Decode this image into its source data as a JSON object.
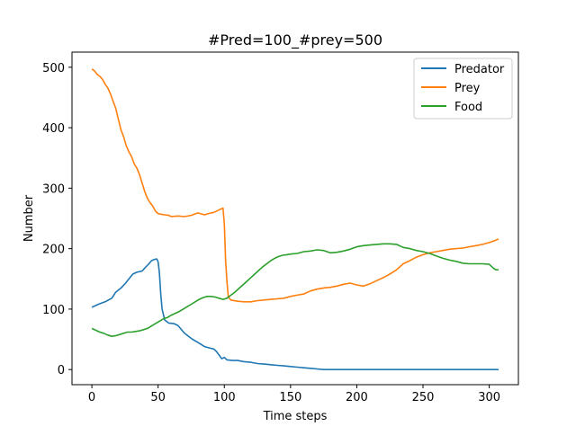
{
  "chart_data": {
    "type": "line",
    "title": "#Pred=100_#prey=500",
    "xlabel": "Time steps",
    "ylabel": "Number",
    "xlim": [
      -15,
      322
    ],
    "ylim": [
      -25,
      525
    ],
    "xticks": [
      0,
      50,
      100,
      150,
      200,
      250,
      300
    ],
    "yticks": [
      0,
      100,
      200,
      300,
      400,
      500
    ],
    "grid": false,
    "legend_position": "top-right",
    "series": [
      {
        "name": "Predator",
        "color": "#1f77b4",
        "points": [
          [
            0,
            103
          ],
          [
            5,
            108
          ],
          [
            10,
            112
          ],
          [
            15,
            118
          ],
          [
            18,
            128
          ],
          [
            22,
            135
          ],
          [
            25,
            142
          ],
          [
            28,
            150
          ],
          [
            31,
            158
          ],
          [
            34,
            161
          ],
          [
            38,
            163
          ],
          [
            40,
            168
          ],
          [
            43,
            175
          ],
          [
            45,
            180
          ],
          [
            47,
            182
          ],
          [
            49,
            183
          ],
          [
            50,
            178
          ],
          [
            51,
            160
          ],
          [
            52,
            125
          ],
          [
            53,
            100
          ],
          [
            55,
            82
          ],
          [
            58,
            77
          ],
          [
            62,
            76
          ],
          [
            65,
            73
          ],
          [
            68,
            65
          ],
          [
            70,
            60
          ],
          [
            73,
            55
          ],
          [
            76,
            50
          ],
          [
            80,
            45
          ],
          [
            85,
            38
          ],
          [
            90,
            35
          ],
          [
            92,
            34
          ],
          [
            94,
            30
          ],
          [
            96,
            24
          ],
          [
            98,
            18
          ],
          [
            100,
            20
          ],
          [
            102,
            16
          ],
          [
            106,
            15
          ],
          [
            110,
            15
          ],
          [
            115,
            13
          ],
          [
            120,
            12
          ],
          [
            125,
            10
          ],
          [
            130,
            9
          ],
          [
            135,
            8
          ],
          [
            140,
            7
          ],
          [
            145,
            6
          ],
          [
            150,
            5
          ],
          [
            155,
            4
          ],
          [
            160,
            3
          ],
          [
            165,
            2
          ],
          [
            170,
            1
          ],
          [
            175,
            0
          ],
          [
            200,
            0
          ],
          [
            250,
            0
          ],
          [
            300,
            0
          ],
          [
            307,
            0
          ]
        ]
      },
      {
        "name": "Prey",
        "color": "#ff7f0e",
        "points": [
          [
            0,
            497
          ],
          [
            2,
            494
          ],
          [
            4,
            488
          ],
          [
            6,
            485
          ],
          [
            8,
            480
          ],
          [
            10,
            472
          ],
          [
            12,
            466
          ],
          [
            14,
            456
          ],
          [
            16,
            444
          ],
          [
            18,
            432
          ],
          [
            20,
            414
          ],
          [
            22,
            396
          ],
          [
            24,
            385
          ],
          [
            26,
            370
          ],
          [
            28,
            360
          ],
          [
            30,
            352
          ],
          [
            32,
            340
          ],
          [
            34,
            333
          ],
          [
            36,
            322
          ],
          [
            38,
            308
          ],
          [
            40,
            294
          ],
          [
            42,
            283
          ],
          [
            44,
            276
          ],
          [
            46,
            270
          ],
          [
            48,
            262
          ],
          [
            50,
            258
          ],
          [
            52,
            257
          ],
          [
            55,
            256
          ],
          [
            58,
            255
          ],
          [
            60,
            253
          ],
          [
            65,
            254
          ],
          [
            70,
            253
          ],
          [
            75,
            255
          ],
          [
            80,
            259
          ],
          [
            85,
            256
          ],
          [
            88,
            258
          ],
          [
            92,
            260
          ],
          [
            95,
            263
          ],
          [
            98,
            266
          ],
          [
            99,
            267
          ],
          [
            100,
            240
          ],
          [
            101,
            180
          ],
          [
            102,
            145
          ],
          [
            103,
            120
          ],
          [
            105,
            115
          ],
          [
            110,
            113
          ],
          [
            115,
            112
          ],
          [
            120,
            112
          ],
          [
            125,
            114
          ],
          [
            130,
            115
          ],
          [
            135,
            116
          ],
          [
            140,
            117
          ],
          [
            145,
            118
          ],
          [
            150,
            121
          ],
          [
            155,
            123
          ],
          [
            160,
            125
          ],
          [
            165,
            130
          ],
          [
            170,
            133
          ],
          [
            175,
            135
          ],
          [
            180,
            136
          ],
          [
            185,
            138
          ],
          [
            190,
            141
          ],
          [
            195,
            143
          ],
          [
            200,
            140
          ],
          [
            205,
            138
          ],
          [
            210,
            142
          ],
          [
            215,
            147
          ],
          [
            220,
            152
          ],
          [
            225,
            158
          ],
          [
            230,
            165
          ],
          [
            235,
            175
          ],
          [
            240,
            180
          ],
          [
            245,
            186
          ],
          [
            250,
            190
          ],
          [
            255,
            193
          ],
          [
            260,
            195
          ],
          [
            265,
            197
          ],
          [
            270,
            199
          ],
          [
            275,
            200
          ],
          [
            280,
            201
          ],
          [
            285,
            203
          ],
          [
            290,
            205
          ],
          [
            295,
            207
          ],
          [
            300,
            210
          ],
          [
            305,
            214
          ],
          [
            307,
            216
          ]
        ]
      },
      {
        "name": "Food",
        "color": "#2ca02c",
        "points": [
          [
            0,
            68
          ],
          [
            3,
            65
          ],
          [
            6,
            62
          ],
          [
            9,
            60
          ],
          [
            12,
            57
          ],
          [
            15,
            55
          ],
          [
            18,
            56
          ],
          [
            21,
            58
          ],
          [
            24,
            60
          ],
          [
            27,
            62
          ],
          [
            30,
            62
          ],
          [
            33,
            63
          ],
          [
            36,
            64
          ],
          [
            39,
            66
          ],
          [
            42,
            68
          ],
          [
            45,
            72
          ],
          [
            48,
            76
          ],
          [
            51,
            80
          ],
          [
            54,
            84
          ],
          [
            57,
            86
          ],
          [
            60,
            90
          ],
          [
            63,
            93
          ],
          [
            66,
            96
          ],
          [
            69,
            100
          ],
          [
            72,
            104
          ],
          [
            75,
            108
          ],
          [
            78,
            112
          ],
          [
            81,
            116
          ],
          [
            84,
            119
          ],
          [
            87,
            121
          ],
          [
            90,
            121
          ],
          [
            93,
            120
          ],
          [
            96,
            118
          ],
          [
            99,
            116
          ],
          [
            102,
            118
          ],
          [
            105,
            123
          ],
          [
            108,
            128
          ],
          [
            111,
            134
          ],
          [
            114,
            140
          ],
          [
            117,
            146
          ],
          [
            120,
            152
          ],
          [
            123,
            158
          ],
          [
            126,
            164
          ],
          [
            129,
            170
          ],
          [
            132,
            175
          ],
          [
            135,
            180
          ],
          [
            138,
            184
          ],
          [
            141,
            187
          ],
          [
            144,
            189
          ],
          [
            147,
            190
          ],
          [
            150,
            191
          ],
          [
            155,
            192
          ],
          [
            160,
            195
          ],
          [
            165,
            196
          ],
          [
            170,
            198
          ],
          [
            175,
            197
          ],
          [
            180,
            193
          ],
          [
            185,
            194
          ],
          [
            190,
            196
          ],
          [
            195,
            199
          ],
          [
            200,
            203
          ],
          [
            205,
            205
          ],
          [
            210,
            206
          ],
          [
            215,
            207
          ],
          [
            220,
            208
          ],
          [
            225,
            208
          ],
          [
            230,
            207
          ],
          [
            235,
            202
          ],
          [
            240,
            200
          ],
          [
            245,
            197
          ],
          [
            250,
            195
          ],
          [
            255,
            192
          ],
          [
            260,
            188
          ],
          [
            265,
            184
          ],
          [
            270,
            181
          ],
          [
            275,
            179
          ],
          [
            280,
            176
          ],
          [
            285,
            175
          ],
          [
            290,
            175
          ],
          [
            295,
            175
          ],
          [
            300,
            174
          ],
          [
            303,
            168
          ],
          [
            305,
            165
          ],
          [
            307,
            165
          ]
        ]
      }
    ]
  }
}
